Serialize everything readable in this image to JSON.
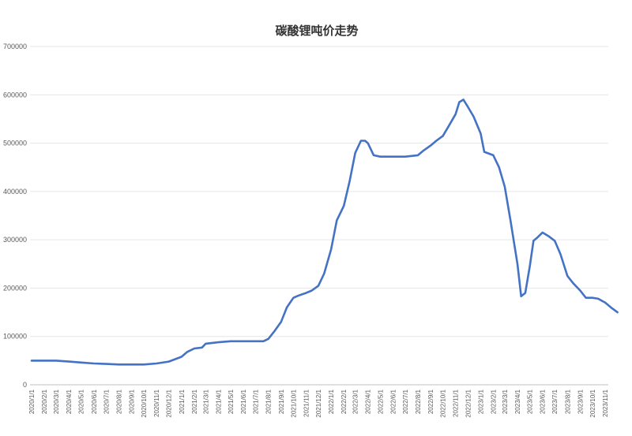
{
  "chart_data": {
    "type": "line",
    "title": "碳酸锂吨价走势",
    "ylim": [
      0,
      700000
    ],
    "yticks": [
      0,
      100000,
      200000,
      300000,
      400000,
      500000,
      600000,
      700000
    ],
    "grid": true,
    "legend": "none",
    "colors": {
      "line": "#4472c4",
      "grid": "#e6e6e6",
      "text": "#595959"
    },
    "x_tick_labels": [
      "2020/1/1",
      "2020/2/1",
      "2020/3/1",
      "2020/4/1",
      "2020/5/1",
      "2020/6/1",
      "2020/7/1",
      "2020/8/1",
      "2020/9/1",
      "2020/10/1",
      "2020/11/1",
      "2020/12/1",
      "2021/1/1",
      "2021/2/1",
      "2021/3/1",
      "2021/4/1",
      "2021/5/1",
      "2021/6/1",
      "2021/7/1",
      "2021/8/1",
      "2021/9/1",
      "2021/10/1",
      "2021/11/1",
      "2021/12/1",
      "2022/1/1",
      "2022/2/1",
      "2022/3/1",
      "2022/4/1",
      "2022/5/1",
      "2022/6/1",
      "2022/7/1",
      "2022/8/1",
      "2022/9/1",
      "2022/10/1",
      "2022/11/1",
      "2022/12/1",
      "2023/1/1",
      "2023/2/1",
      "2023/3/1",
      "2023/4/1",
      "2023/5/1",
      "2023/6/1",
      "2023/7/1",
      "2023/8/1",
      "2023/9/1",
      "2023/10/1",
      "2023/11/1"
    ],
    "series": [
      {
        "x": [
          "2020/1/1",
          "2020/2/1",
          "2020/3/1",
          "2020/4/1",
          "2020/5/1",
          "2020/6/1",
          "2020/7/1",
          "2020/8/1",
          "2020/9/1",
          "2020/10/1",
          "2020/11/1",
          "2020/12/1",
          "2021/1/1",
          "2021/1/15",
          "2021/2/1",
          "2021/2/20",
          "2021/3/1",
          "2021/4/1",
          "2021/5/1",
          "2021/6/1",
          "2021/7/1",
          "2021/7/20",
          "2021/8/1",
          "2021/8/15",
          "2021/9/1",
          "2021/9/15",
          "2021/10/1",
          "2021/10/15",
          "2021/11/1",
          "2021/11/15",
          "2021/12/1",
          "2021/12/15",
          "2022/1/1",
          "2022/1/15",
          "2022/2/1",
          "2022/2/15",
          "2022/3/1",
          "2022/3/15",
          "2022/3/25",
          "2022/4/1",
          "2022/4/15",
          "2022/5/1",
          "2022/6/1",
          "2022/7/1",
          "2022/8/1",
          "2022/8/15",
          "2022/9/1",
          "2022/9/15",
          "2022/10/1",
          "2022/10/15",
          "2022/11/1",
          "2022/11/10",
          "2022/11/20",
          "2022/12/1",
          "2022/12/15",
          "2023/1/1",
          "2023/1/10",
          "2023/2/1",
          "2023/2/15",
          "2023/3/1",
          "2023/3/15",
          "2023/4/1",
          "2023/4/10",
          "2023/4/20",
          "2023/5/1",
          "2023/5/10",
          "2023/5/20",
          "2023/6/1",
          "2023/6/15",
          "2023/7/1",
          "2023/7/15",
          "2023/8/1",
          "2023/8/15",
          "2023/9/1",
          "2023/9/15",
          "2023/10/1",
          "2023/10/15",
          "2023/11/1",
          "2023/11/15",
          "2023/12/1"
        ],
        "values": [
          50000,
          50000,
          50000,
          48000,
          46000,
          44000,
          43000,
          42000,
          42000,
          42000,
          44000,
          48000,
          58000,
          68000,
          75000,
          77000,
          85000,
          88000,
          90000,
          90000,
          90000,
          90000,
          95000,
          110000,
          130000,
          160000,
          180000,
          185000,
          190000,
          195000,
          205000,
          230000,
          280000,
          340000,
          370000,
          420000,
          480000,
          505000,
          505000,
          500000,
          475000,
          472000,
          472000,
          472000,
          475000,
          485000,
          495000,
          505000,
          515000,
          535000,
          560000,
          585000,
          590000,
          575000,
          555000,
          520000,
          482000,
          475000,
          450000,
          410000,
          340000,
          250000,
          183000,
          190000,
          245000,
          298000,
          305000,
          315000,
          308000,
          298000,
          270000,
          225000,
          210000,
          195000,
          180000,
          180000,
          178000,
          170000,
          160000,
          150000
        ]
      }
    ]
  }
}
